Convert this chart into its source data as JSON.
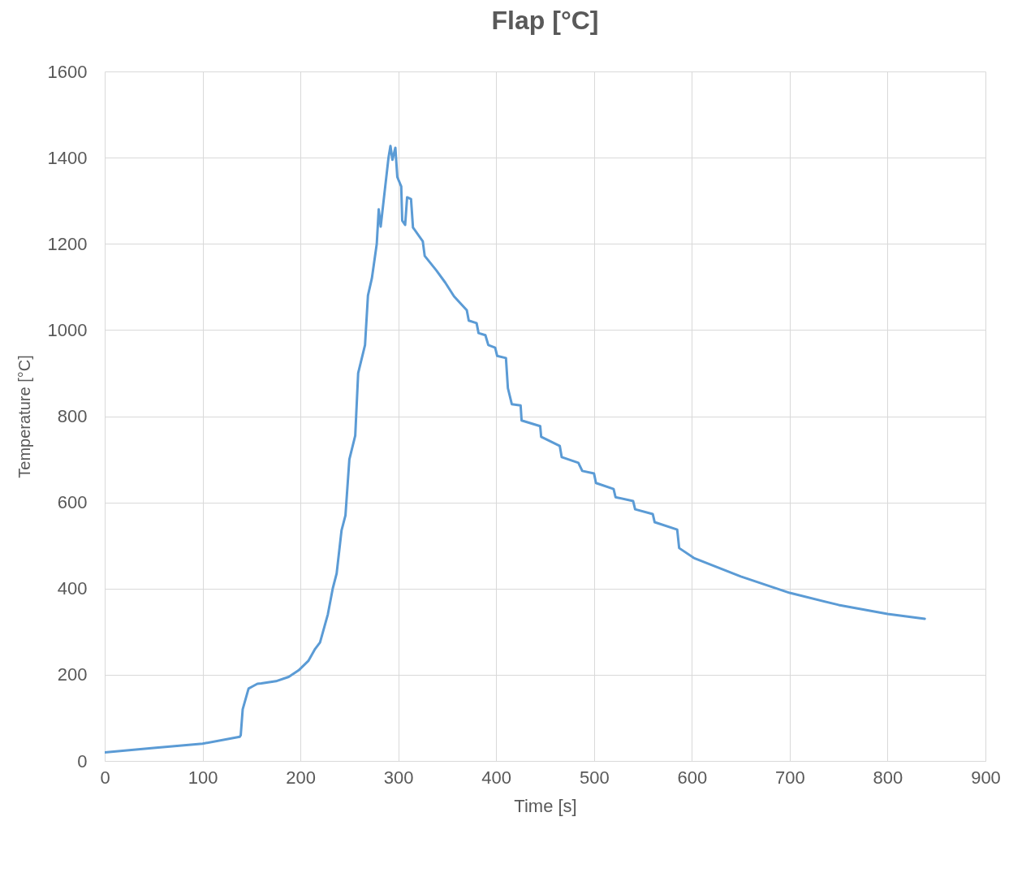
{
  "chart_data": {
    "type": "line",
    "title": "Flap [°C]",
    "xlabel": "Time [s]",
    "ylabel": "Temperature [°C]",
    "x": [
      0,
      50,
      100,
      138,
      139,
      141,
      147,
      151,
      156,
      160,
      175,
      188,
      198,
      208,
      210,
      215,
      220,
      228,
      233,
      237,
      242,
      246,
      250,
      256,
      259,
      266,
      269,
      273,
      278,
      280,
      282,
      285,
      290,
      292,
      294,
      297,
      299,
      303,
      304,
      307,
      309,
      313,
      315,
      325,
      327,
      339,
      348,
      357,
      370,
      372,
      380,
      382,
      389,
      392,
      399,
      401,
      410,
      412,
      416,
      425,
      426,
      445,
      446,
      465,
      467,
      484,
      488,
      500,
      502,
      520,
      522,
      540,
      542,
      560,
      562,
      585,
      587,
      602,
      650,
      700,
      750,
      800,
      838
    ],
    "series": [
      {
        "color": "#5b9bd5",
        "values": [
          20,
          30,
          40,
          56,
          60,
          120,
          168,
          173,
          179,
          180,
          185,
          195,
          210,
          232,
          240,
          260,
          275,
          340,
          400,
          435,
          535,
          570,
          700,
          755,
          900,
          965,
          1080,
          1120,
          1200,
          1280,
          1240,
          1300,
          1400,
          1427,
          1395,
          1423,
          1355,
          1333,
          1254,
          1244,
          1308,
          1304,
          1238,
          1206,
          1172,
          1138,
          1110,
          1078,
          1046,
          1022,
          1016,
          993,
          988,
          965,
          959,
          940,
          935,
          865,
          828,
          825,
          790,
          777,
          752,
          731,
          705,
          692,
          673,
          667,
          645,
          631,
          612,
          603,
          584,
          573,
          554,
          537,
          494,
          471,
          428,
          390,
          362,
          341,
          330
        ]
      }
    ],
    "xlim": [
      0,
      900
    ],
    "xticks": [
      0,
      100,
      200,
      300,
      400,
      500,
      600,
      700,
      800,
      900
    ],
    "ylim": [
      0,
      1600
    ],
    "yticks": [
      0,
      200,
      400,
      600,
      800,
      1000,
      1200,
      1400,
      1600
    ],
    "grid": true,
    "line_style": "solid",
    "marker": "none"
  }
}
